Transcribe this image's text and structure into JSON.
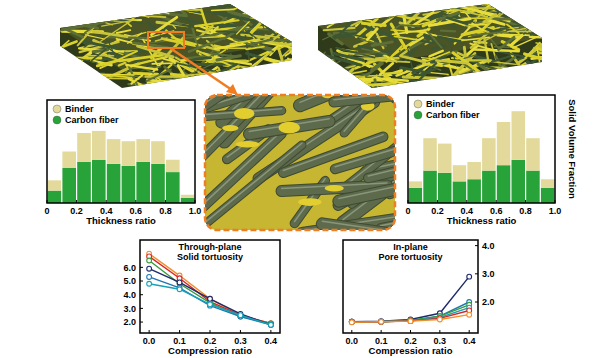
{
  "chart_data": [
    {
      "type": "histogram",
      "stacked": true,
      "bins": [
        0,
        0.1,
        0.2,
        0.3,
        0.4,
        0.5,
        0.6,
        0.7,
        0.8,
        0.9,
        1
      ],
      "series": [
        {
          "name": "Carbon fiber",
          "color": "#27a33a",
          "values": [
            0.12,
            0.34,
            0.4,
            0.42,
            0.38,
            0.36,
            0.4,
            0.38,
            0.3,
            0.05
          ]
        },
        {
          "name": "Binder",
          "color": "#e3d99a",
          "values": [
            0.1,
            0.16,
            0.28,
            0.28,
            0.24,
            0.24,
            0.22,
            0.22,
            0.12,
            0.03
          ]
        }
      ],
      "x_label": "Thickness ratio",
      "xlim": [
        0,
        1
      ],
      "xticks": [
        0,
        0.2,
        0.4,
        0.6,
        0.8,
        {
          "value": 1,
          "label": "1.0"
        }
      ],
      "ylim": [
        0,
        1
      ],
      "tick_labels": "x",
      "legend": "top-left"
    },
    {
      "type": "histogram",
      "stacked": true,
      "bins": [
        0,
        0.1,
        0.2,
        0.3,
        0.4,
        0.5,
        0.6,
        0.7,
        0.8,
        0.9,
        1
      ],
      "series": [
        {
          "name": "Carbon fiber",
          "color": "#27a33a",
          "values": [
            0.14,
            0.3,
            0.28,
            0.2,
            0.22,
            0.3,
            0.35,
            0.4,
            0.3,
            0.14
          ]
        },
        {
          "name": "Binder",
          "color": "#e3d99a",
          "values": [
            0.06,
            0.3,
            0.27,
            0.15,
            0.16,
            0.3,
            0.4,
            0.45,
            0.3,
            0.08
          ]
        }
      ],
      "x_label": "Thickness ratio",
      "y_label": "Solid Volume Fraction",
      "xlim": [
        0,
        1
      ],
      "xticks": [
        0,
        0.2,
        0.4,
        0.6,
        0.8,
        {
          "value": 1,
          "label": "1.0"
        }
      ],
      "ylim": [
        0,
        1
      ],
      "tick_labels": "x",
      "legend": "top-left"
    },
    {
      "type": "line",
      "marker": "circle",
      "title": "Through-plane\nSolid tortuosity",
      "x_label": "Compression ratio",
      "x": [
        0,
        0.1,
        0.2,
        0.3,
        0.4
      ],
      "xlim": [
        -0.03,
        0.43
      ],
      "xticks": [
        {
          "value": 0,
          "label": "0.0"
        },
        {
          "value": 0.1,
          "label": "0.1"
        },
        {
          "value": 0.2,
          "label": "0.2"
        },
        {
          "value": 0.3,
          "label": "0.3"
        },
        {
          "value": 0.4,
          "label": "0.4"
        }
      ],
      "ylim": [
        1.2,
        8.0
      ],
      "yticks": [
        {
          "value": 2,
          "label": "2.0"
        },
        {
          "value": 3,
          "label": "3.0"
        },
        {
          "value": 4,
          "label": "4.0"
        },
        {
          "value": 5,
          "label": "5.0"
        },
        {
          "value": 6,
          "label": "6.0"
        }
      ],
      "series": [
        {
          "color": "#f28e2b",
          "values": [
            7.0,
            5.4,
            3.7,
            2.5,
            1.9
          ]
        },
        {
          "color": "#d62728",
          "values": [
            6.8,
            5.2,
            3.5,
            2.5,
            1.9
          ]
        },
        {
          "color": "#3a9a3a",
          "values": [
            6.5,
            4.8,
            3.4,
            2.4,
            1.9
          ]
        },
        {
          "color": "#1f2a6b",
          "values": [
            5.9,
            4.9,
            3.7,
            2.6,
            1.8
          ]
        },
        {
          "color": "#1f77b4",
          "values": [
            5.3,
            4.5,
            3.2,
            2.4,
            1.8
          ]
        },
        {
          "color": "#17a2b8",
          "values": [
            4.8,
            4.4,
            3.3,
            2.5,
            1.8
          ]
        }
      ]
    },
    {
      "type": "line",
      "marker": "circle",
      "title": "In-plane\nPore tortuosity",
      "x_label": "Compression ratio",
      "x": [
        0,
        0.1,
        0.2,
        0.3,
        0.4
      ],
      "xlim": [
        -0.03,
        0.43
      ],
      "xticks": [
        {
          "value": 0,
          "label": "0.0"
        },
        {
          "value": 0.1,
          "label": "0.1"
        },
        {
          "value": 0.2,
          "label": "0.2"
        },
        {
          "value": 0.3,
          "label": "0.3"
        },
        {
          "value": 0.4,
          "label": "0.4"
        }
      ],
      "y2lim": [
        0.9,
        4.2
      ],
      "y2ticks": [
        {
          "value": 2,
          "label": "2.0"
        },
        {
          "value": 3,
          "label": "3.0"
        },
        {
          "value": 4,
          "label": "4.0"
        }
      ],
      "series": [
        {
          "color": "#1f2a6b",
          "axis": "y2",
          "values": [
            1.3,
            1.32,
            1.38,
            1.6,
            2.9
          ]
        },
        {
          "color": "#1f77b4",
          "axis": "y2",
          "values": [
            1.3,
            1.3,
            1.35,
            1.5,
            2.0
          ]
        },
        {
          "color": "#3a9a3a",
          "axis": "y2",
          "values": [
            1.3,
            1.3,
            1.35,
            1.5,
            1.9
          ]
        },
        {
          "color": "#17a2b8",
          "axis": "y2",
          "values": [
            1.3,
            1.3,
            1.33,
            1.45,
            1.8
          ]
        },
        {
          "color": "#d62728",
          "axis": "y2",
          "values": [
            1.3,
            1.3,
            1.33,
            1.42,
            1.7
          ]
        },
        {
          "color": "#f28e2b",
          "axis": "y2",
          "values": [
            1.28,
            1.3,
            1.32,
            1.38,
            1.55
          ]
        }
      ]
    }
  ]
}
